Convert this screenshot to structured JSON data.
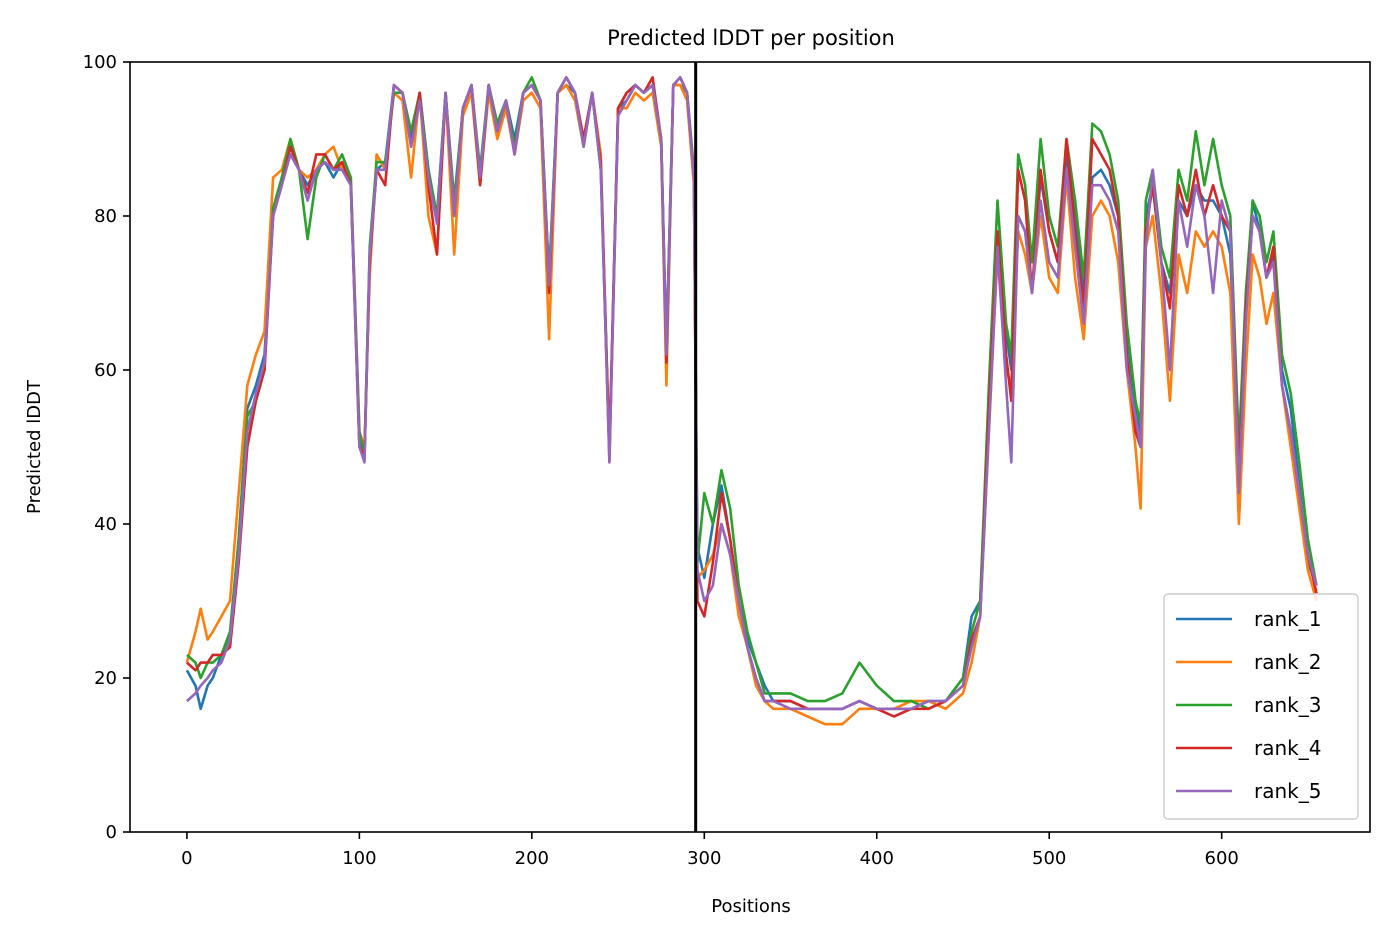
{
  "chart_data": {
    "type": "line",
    "title": "Predicted lDDT per position",
    "xlabel": "Positions",
    "ylabel": "Predicted lDDT",
    "xlim": [
      -33,
      686
    ],
    "ylim": [
      0,
      100
    ],
    "xticks": [
      0,
      100,
      200,
      300,
      400,
      500,
      600
    ],
    "yticks": [
      0,
      20,
      40,
      60,
      80,
      100
    ],
    "grid": false,
    "legend_position": "lower-right",
    "vline": {
      "x": 295,
      "color": "#000000"
    },
    "series": [
      {
        "name": "rank_1",
        "color": "#1f77b4",
        "x": [
          0,
          5,
          8,
          12,
          15,
          20,
          25,
          30,
          35,
          40,
          45,
          50,
          55,
          60,
          65,
          70,
          75,
          80,
          85,
          90,
          95,
          100,
          103,
          106,
          110,
          115,
          120,
          125,
          130,
          135,
          140,
          145,
          150,
          155,
          160,
          165,
          170,
          175,
          180,
          185,
          190,
          195,
          200,
          205,
          210,
          215,
          220,
          225,
          230,
          235,
          240,
          245,
          250,
          255,
          260,
          265,
          270,
          275,
          278,
          282,
          286,
          290,
          294,
          296,
          300,
          305,
          310,
          315,
          320,
          325,
          330,
          335,
          340,
          350,
          360,
          370,
          380,
          390,
          400,
          410,
          420,
          430,
          440,
          450,
          455,
          460,
          465,
          470,
          475,
          478,
          482,
          486,
          490,
          495,
          500,
          505,
          510,
          515,
          520,
          525,
          530,
          535,
          540,
          545,
          550,
          553,
          556,
          560,
          565,
          570,
          575,
          580,
          585,
          590,
          595,
          600,
          605,
          610,
          614,
          618,
          622,
          626,
          630,
          635,
          640,
          645,
          650,
          655
        ],
        "y": [
          21,
          19,
          16,
          19,
          20,
          23,
          25,
          38,
          55,
          58,
          62,
          80,
          85,
          88,
          86,
          84,
          86,
          87,
          85,
          87,
          84,
          51,
          49,
          75,
          86,
          87,
          97,
          96,
          90,
          96,
          86,
          80,
          96,
          81,
          94,
          97,
          85,
          97,
          92,
          95,
          90,
          96,
          97,
          95,
          72,
          96,
          97,
          96,
          90,
          96,
          86,
          49,
          94,
          95,
          97,
          96,
          97,
          90,
          63,
          97,
          97,
          96,
          85,
          37,
          33,
          40,
          45,
          38,
          30,
          25,
          22,
          19,
          17,
          17,
          16,
          16,
          16,
          17,
          16,
          16,
          16,
          17,
          17,
          20,
          28,
          30,
          55,
          78,
          65,
          60,
          80,
          78,
          70,
          85,
          78,
          74,
          88,
          80,
          70,
          85,
          86,
          84,
          80,
          65,
          55,
          52,
          80,
          84,
          74,
          70,
          82,
          80,
          84,
          82,
          82,
          80,
          75,
          48,
          68,
          82,
          78,
          72,
          75,
          60,
          55,
          45,
          35,
          32
        ]
      },
      {
        "name": "rank_2",
        "color": "#ff7f0e",
        "x": [
          0,
          5,
          8,
          12,
          15,
          20,
          25,
          30,
          35,
          40,
          45,
          50,
          55,
          60,
          65,
          70,
          75,
          80,
          85,
          90,
          95,
          100,
          103,
          106,
          110,
          115,
          120,
          125,
          130,
          135,
          140,
          145,
          150,
          155,
          160,
          165,
          170,
          175,
          180,
          185,
          190,
          195,
          200,
          205,
          210,
          215,
          220,
          225,
          230,
          235,
          240,
          245,
          250,
          255,
          260,
          265,
          270,
          275,
          278,
          282,
          286,
          290,
          294,
          296,
          300,
          305,
          310,
          315,
          320,
          325,
          330,
          335,
          340,
          350,
          360,
          370,
          380,
          390,
          400,
          410,
          420,
          430,
          440,
          450,
          455,
          460,
          465,
          470,
          475,
          478,
          482,
          486,
          490,
          495,
          500,
          505,
          510,
          515,
          520,
          525,
          530,
          535,
          540,
          545,
          550,
          553,
          556,
          560,
          565,
          570,
          575,
          580,
          585,
          590,
          595,
          600,
          605,
          610,
          614,
          618,
          622,
          626,
          630,
          635,
          640,
          645,
          650,
          655
        ],
        "y": [
          22,
          26,
          29,
          25,
          26,
          28,
          30,
          44,
          58,
          62,
          65,
          85,
          86,
          90,
          86,
          85,
          86,
          88,
          89,
          86,
          85,
          52,
          50,
          72,
          88,
          86,
          96,
          95,
          85,
          96,
          80,
          75,
          96,
          75,
          93,
          96,
          84,
          96,
          90,
          94,
          88,
          95,
          96,
          94,
          64,
          96,
          97,
          95,
          89,
          96,
          88,
          48,
          94,
          94,
          96,
          95,
          96,
          89,
          58,
          97,
          97,
          95,
          84,
          33,
          34,
          36,
          40,
          36,
          28,
          24,
          19,
          17,
          16,
          16,
          15,
          14,
          14,
          16,
          16,
          16,
          17,
          17,
          16,
          18,
          22,
          28,
          52,
          75,
          60,
          58,
          78,
          75,
          70,
          80,
          72,
          70,
          85,
          72,
          64,
          80,
          82,
          80,
          74,
          60,
          50,
          42,
          76,
          80,
          70,
          56,
          75,
          70,
          78,
          76,
          78,
          76,
          70,
          40,
          60,
          75,
          72,
          66,
          70,
          58,
          50,
          42,
          34,
          30
        ]
      },
      {
        "name": "rank_3",
        "color": "#2ca02c",
        "x": [
          0,
          5,
          8,
          12,
          15,
          20,
          25,
          30,
          35,
          40,
          45,
          50,
          55,
          60,
          65,
          70,
          75,
          80,
          85,
          90,
          95,
          100,
          103,
          106,
          110,
          115,
          120,
          125,
          130,
          135,
          140,
          145,
          150,
          155,
          160,
          165,
          170,
          175,
          180,
          185,
          190,
          195,
          200,
          205,
          210,
          215,
          220,
          225,
          230,
          235,
          240,
          245,
          250,
          255,
          260,
          265,
          270,
          275,
          278,
          282,
          286,
          290,
          294,
          296,
          300,
          305,
          310,
          315,
          320,
          325,
          330,
          335,
          340,
          350,
          360,
          370,
          380,
          390,
          400,
          410,
          420,
          430,
          440,
          450,
          455,
          460,
          465,
          470,
          475,
          478,
          482,
          486,
          490,
          495,
          500,
          505,
          510,
          515,
          520,
          525,
          530,
          535,
          540,
          545,
          550,
          553,
          556,
          560,
          565,
          570,
          575,
          580,
          585,
          590,
          595,
          600,
          605,
          610,
          614,
          618,
          622,
          626,
          630,
          635,
          640,
          645,
          650,
          655
        ],
        "y": [
          23,
          22,
          20,
          22,
          22,
          23,
          26,
          38,
          54,
          56,
          60,
          81,
          85,
          90,
          86,
          77,
          85,
          88,
          86,
          88,
          85,
          52,
          49,
          76,
          87,
          87,
          96,
          96,
          91,
          96,
          86,
          80,
          96,
          82,
          94,
          97,
          86,
          97,
          92,
          95,
          89,
          96,
          98,
          95,
          72,
          96,
          98,
          96,
          89,
          96,
          86,
          49,
          94,
          96,
          97,
          96,
          97,
          90,
          61,
          97,
          98,
          96,
          86,
          35,
          44,
          40,
          47,
          42,
          32,
          26,
          22,
          18,
          18,
          18,
          17,
          17,
          18,
          22,
          19,
          17,
          17,
          16,
          17,
          20,
          26,
          30,
          58,
          82,
          66,
          62,
          88,
          84,
          74,
          90,
          80,
          76,
          90,
          82,
          72,
          92,
          91,
          88,
          82,
          66,
          56,
          53,
          82,
          86,
          76,
          72,
          86,
          82,
          91,
          84,
          90,
          84,
          80,
          50,
          70,
          82,
          80,
          74,
          78,
          62,
          57,
          48,
          38,
          32
        ]
      },
      {
        "name": "rank_4",
        "color": "#d62728",
        "x": [
          0,
          5,
          8,
          12,
          15,
          20,
          25,
          30,
          35,
          40,
          45,
          50,
          55,
          60,
          65,
          70,
          75,
          80,
          85,
          90,
          95,
          100,
          103,
          106,
          110,
          115,
          120,
          125,
          130,
          135,
          140,
          145,
          150,
          155,
          160,
          165,
          170,
          175,
          180,
          185,
          190,
          195,
          200,
          205,
          210,
          215,
          220,
          225,
          230,
          235,
          240,
          245,
          250,
          255,
          260,
          265,
          270,
          275,
          278,
          282,
          286,
          290,
          294,
          296,
          300,
          305,
          310,
          315,
          320,
          325,
          330,
          335,
          340,
          350,
          360,
          370,
          380,
          390,
          400,
          410,
          420,
          430,
          440,
          450,
          455,
          460,
          465,
          470,
          475,
          478,
          482,
          486,
          490,
          495,
          500,
          505,
          510,
          515,
          520,
          525,
          530,
          535,
          540,
          545,
          550,
          553,
          556,
          560,
          565,
          570,
          575,
          580,
          585,
          590,
          595,
          600,
          605,
          610,
          614,
          618,
          622,
          626,
          630,
          635,
          640,
          645,
          650,
          655
        ],
        "y": [
          22,
          21,
          22,
          22,
          23,
          23,
          24,
          35,
          50,
          56,
          60,
          80,
          84,
          89,
          86,
          83,
          88,
          88,
          86,
          87,
          84,
          50,
          49,
          74,
          86,
          84,
          97,
          96,
          89,
          96,
          84,
          75,
          96,
          80,
          94,
          97,
          84,
          97,
          91,
          95,
          88,
          96,
          97,
          95,
          70,
          96,
          98,
          96,
          90,
          96,
          87,
          50,
          94,
          96,
          97,
          96,
          98,
          90,
          61,
          97,
          98,
          96,
          85,
          30,
          28,
          35,
          44,
          38,
          30,
          24,
          20,
          17,
          17,
          17,
          16,
          16,
          16,
          17,
          16,
          15,
          16,
          16,
          17,
          19,
          25,
          28,
          55,
          78,
          62,
          56,
          86,
          82,
          70,
          86,
          78,
          74,
          90,
          78,
          68,
          90,
          88,
          86,
          80,
          62,
          52,
          50,
          78,
          84,
          74,
          68,
          84,
          80,
          86,
          80,
          84,
          80,
          78,
          46,
          68,
          80,
          78,
          72,
          76,
          58,
          52,
          44,
          36,
          31
        ]
      },
      {
        "name": "rank_5",
        "color": "#9467bd",
        "x": [
          0,
          5,
          8,
          12,
          15,
          20,
          25,
          30,
          35,
          40,
          45,
          50,
          55,
          60,
          65,
          70,
          75,
          80,
          85,
          90,
          95,
          100,
          103,
          106,
          110,
          115,
          120,
          125,
          130,
          135,
          140,
          145,
          150,
          155,
          160,
          165,
          170,
          175,
          180,
          185,
          190,
          195,
          200,
          205,
          210,
          215,
          220,
          225,
          230,
          235,
          240,
          245,
          250,
          255,
          260,
          265,
          270,
          275,
          278,
          282,
          286,
          290,
          294,
          296,
          300,
          305,
          310,
          315,
          320,
          325,
          330,
          335,
          340,
          350,
          360,
          370,
          380,
          390,
          400,
          410,
          420,
          430,
          440,
          450,
          455,
          460,
          465,
          470,
          475,
          478,
          482,
          486,
          490,
          495,
          500,
          505,
          510,
          515,
          520,
          525,
          530,
          535,
          540,
          545,
          550,
          553,
          556,
          560,
          565,
          570,
          575,
          580,
          585,
          590,
          595,
          600,
          605,
          610,
          614,
          618,
          622,
          626,
          630,
          635,
          640,
          645,
          650,
          655
        ],
        "y": [
          17,
          18,
          19,
          20,
          21,
          22,
          25,
          36,
          52,
          57,
          61,
          80,
          84,
          88,
          86,
          82,
          86,
          87,
          86,
          86,
          84,
          50,
          48,
          75,
          86,
          86,
          97,
          96,
          89,
          95,
          85,
          79,
          96,
          80,
          94,
          97,
          85,
          97,
          91,
          95,
          88,
          96,
          97,
          95,
          71,
          96,
          98,
          96,
          89,
          96,
          86,
          48,
          93,
          95,
          97,
          96,
          97,
          90,
          62,
          97,
          98,
          96,
          85,
          34,
          30,
          32,
          40,
          36,
          30,
          24,
          20,
          17,
          17,
          16,
          16,
          16,
          16,
          17,
          16,
          16,
          16,
          17,
          17,
          19,
          24,
          28,
          52,
          76,
          58,
          48,
          80,
          78,
          70,
          82,
          74,
          72,
          86,
          76,
          66,
          84,
          84,
          82,
          78,
          60,
          54,
          50,
          76,
          86,
          74,
          60,
          82,
          76,
          84,
          80,
          70,
          82,
          78,
          44,
          66,
          80,
          78,
          72,
          74,
          58,
          52,
          44,
          36,
          32
        ]
      }
    ]
  }
}
